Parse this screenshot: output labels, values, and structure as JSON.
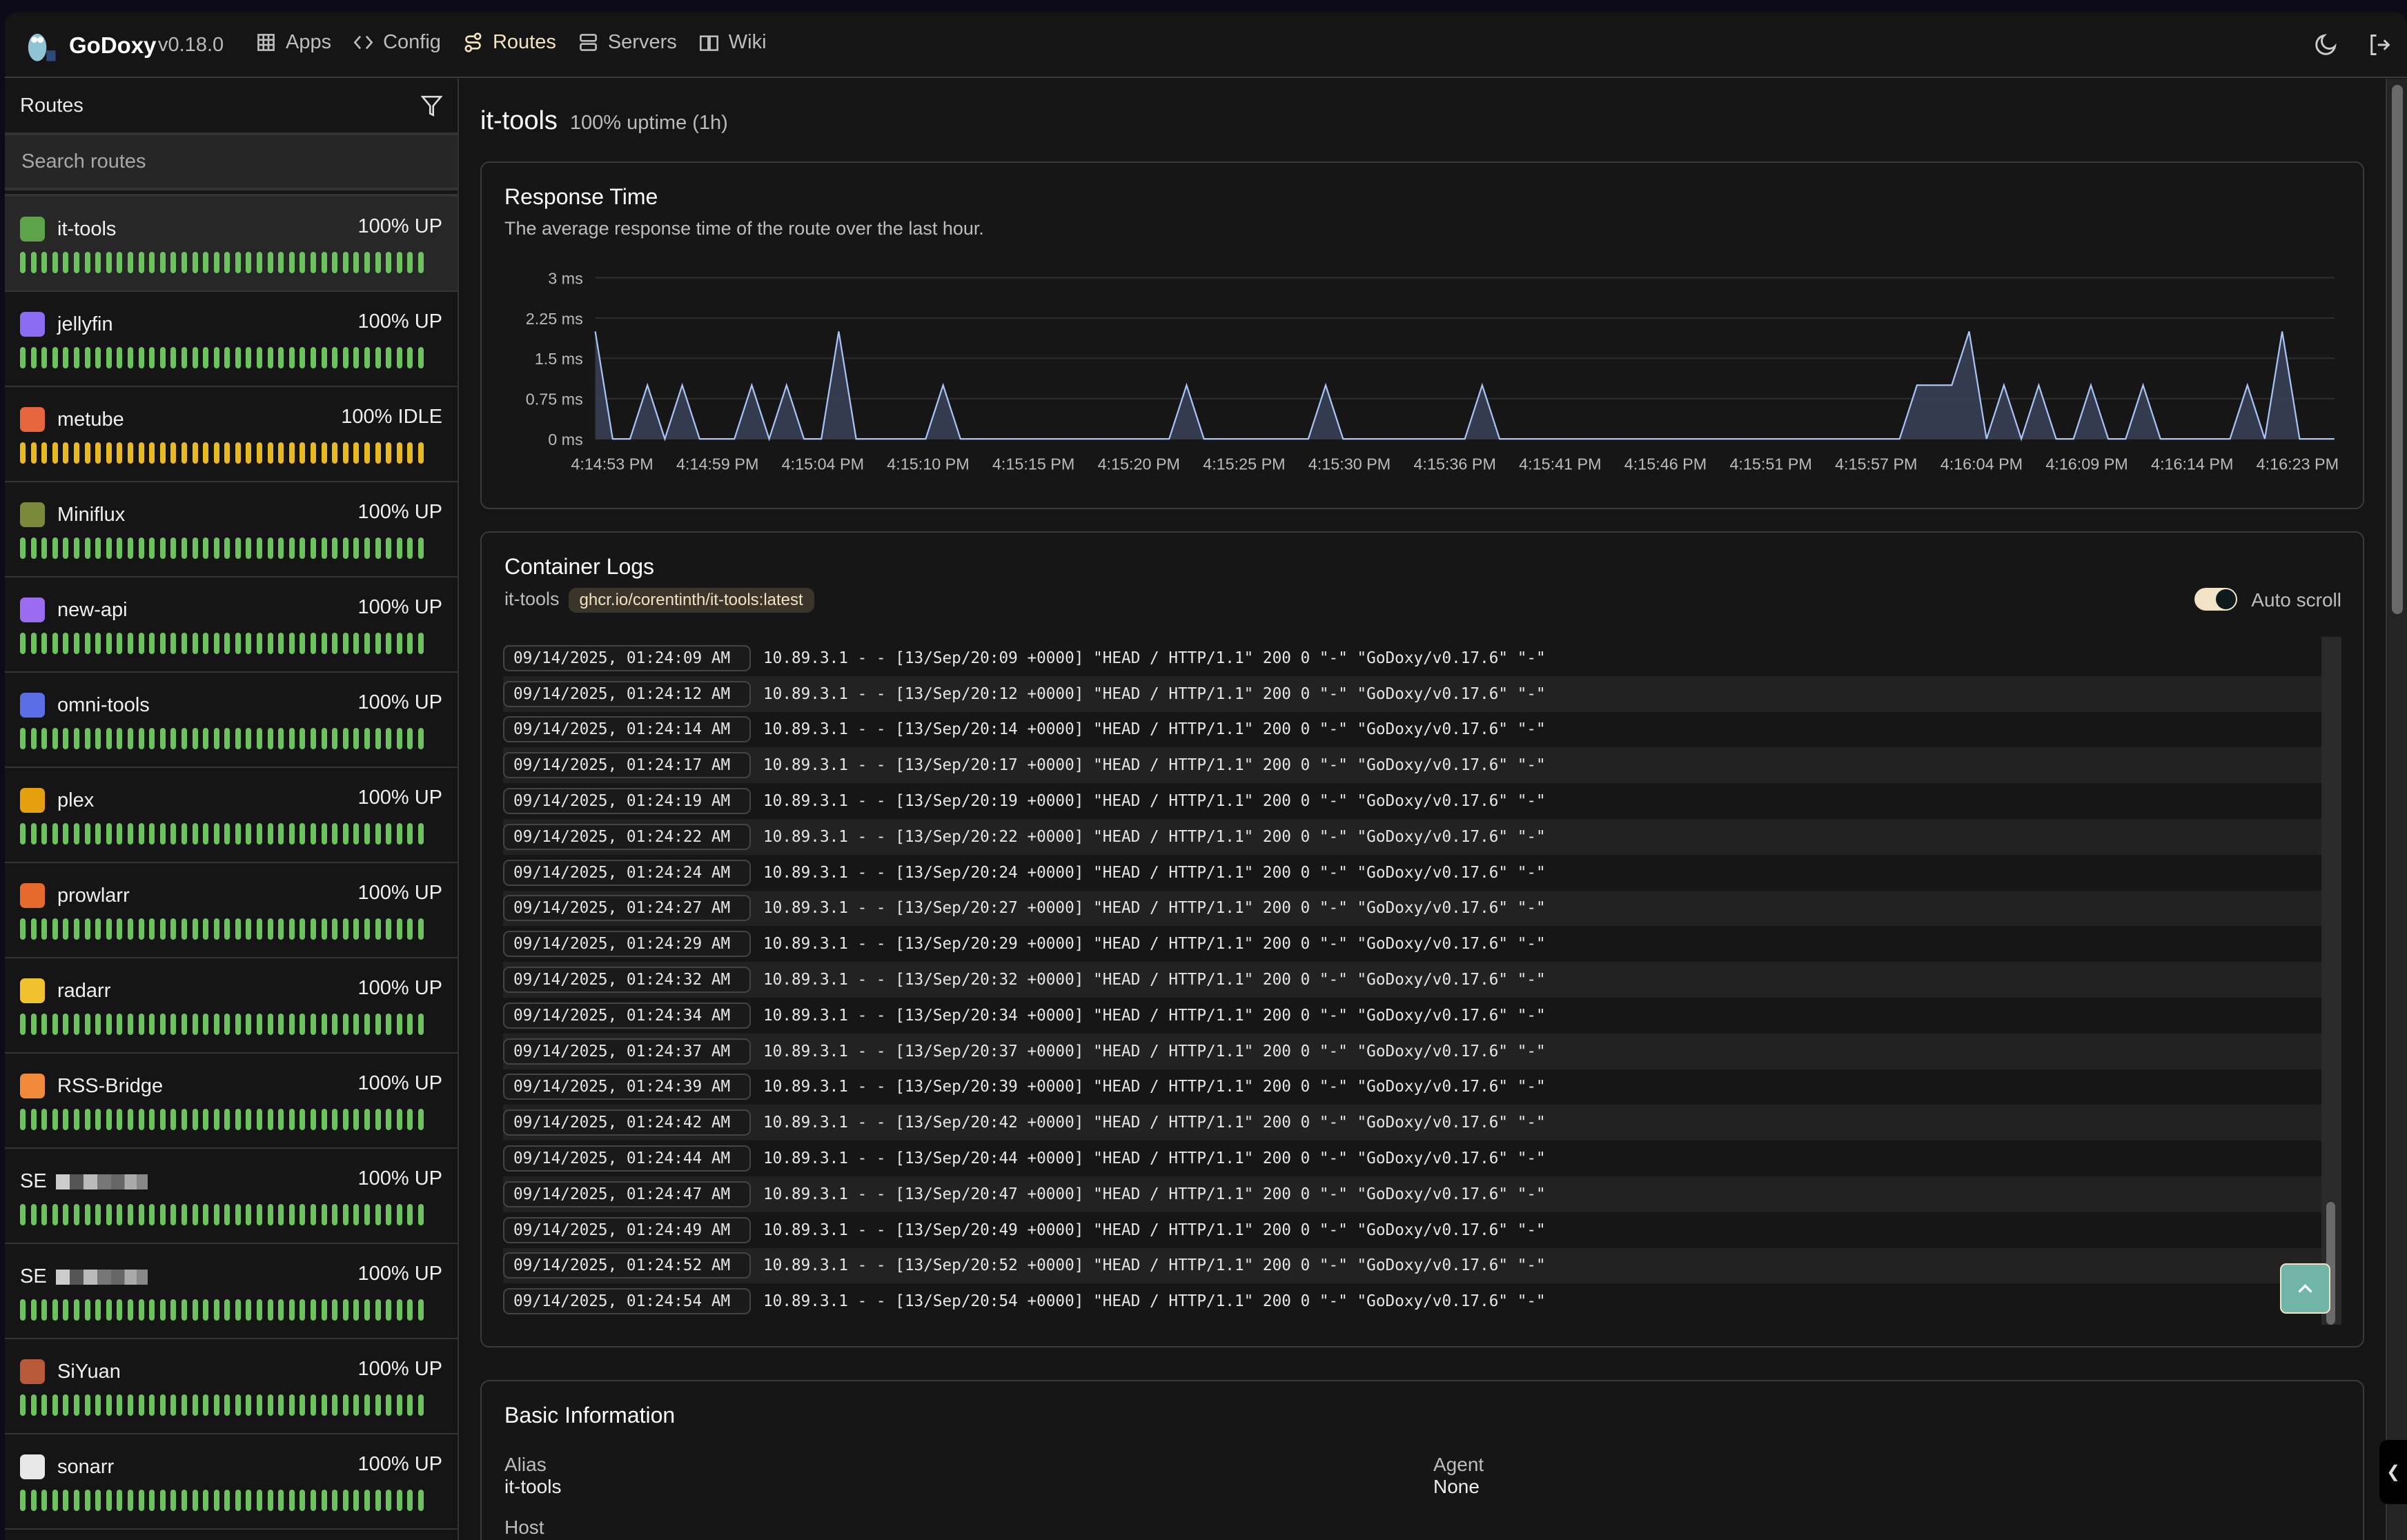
{
  "header": {
    "brand": "GoDoxy",
    "version": "v0.18.0",
    "nav": [
      {
        "label": "Apps",
        "icon": "grid-icon"
      },
      {
        "label": "Config",
        "icon": "code-icon"
      },
      {
        "label": "Routes",
        "icon": "route-icon",
        "active": true
      },
      {
        "label": "Servers",
        "icon": "server-icon"
      },
      {
        "label": "Wiki",
        "icon": "book-icon"
      }
    ],
    "actions": [
      "moon-icon",
      "logout-icon"
    ]
  },
  "sidebar": {
    "title": "Routes",
    "search_placeholder": "Search routes",
    "colors": {
      "up": "#6cc35d",
      "idle": "#e8b923"
    },
    "items": [
      {
        "name": "it-tools",
        "status": "100% UP",
        "state": "up",
        "icon": "it-tools-icon",
        "color": "#5ea34a",
        "selected": true
      },
      {
        "name": "jellyfin",
        "status": "100% UP",
        "state": "up",
        "icon": "jellyfin-icon",
        "color": "#8b6cf0"
      },
      {
        "name": "metube",
        "status": "100% IDLE",
        "state": "idle",
        "icon": "metube-icon",
        "color": "#e8643c"
      },
      {
        "name": "Miniflux",
        "status": "100% UP",
        "state": "up",
        "icon": "miniflux-icon",
        "color": "#7b8a3a"
      },
      {
        "name": "new-api",
        "status": "100% UP",
        "state": "up",
        "icon": "new-api-icon",
        "color": "#9b6cf0"
      },
      {
        "name": "omni-tools",
        "status": "100% UP",
        "state": "up",
        "icon": "omni-tools-icon",
        "color": "#5b6ee8"
      },
      {
        "name": "plex",
        "status": "100% UP",
        "state": "up",
        "icon": "plex-icon",
        "color": "#e5a00d"
      },
      {
        "name": "prowlarr",
        "status": "100% UP",
        "state": "up",
        "icon": "prowlarr-icon",
        "color": "#e66a2c"
      },
      {
        "name": "radarr",
        "status": "100% UP",
        "state": "up",
        "icon": "radarr-icon",
        "color": "#f2c12e"
      },
      {
        "name": "RSS-Bridge",
        "status": "100% UP",
        "state": "up",
        "icon": "rss-bridge-icon",
        "color": "#f08a3a"
      },
      {
        "name": "SE",
        "status": "100% UP",
        "state": "up",
        "icon": "",
        "redacted": true
      },
      {
        "name": "SE",
        "status": "100% UP",
        "state": "up",
        "icon": "",
        "redacted": true
      },
      {
        "name": "SiYuan",
        "status": "100% UP",
        "state": "up",
        "icon": "siyuan-icon",
        "color": "#b85a3a"
      },
      {
        "name": "sonarr",
        "status": "100% UP",
        "state": "up",
        "icon": "sonarr-icon",
        "color": "#e8e8e8"
      }
    ]
  },
  "main": {
    "title": "it-tools",
    "uptime": "100% uptime (1h)",
    "response": {
      "title": "Response Time",
      "subtitle": "The average response time of the route over the last hour."
    },
    "logs": {
      "title": "Container Logs",
      "container": "it-tools",
      "image": "ghcr.io/corentinth/it-tools:latest",
      "auto_scroll_label": "Auto scroll",
      "auto_scroll": true,
      "lines": [
        {
          "ts": "09/14/2025, 01:24:09 AM",
          "msg": "10.89.3.1 - - [13/Sep/20:09 +0000] \"HEAD / HTTP/1.1\" 200 0 \"-\" \"GoDoxy/v0.17.6\" \"-\""
        },
        {
          "ts": "09/14/2025, 01:24:12 AM",
          "msg": "10.89.3.1 - - [13/Sep/20:12 +0000] \"HEAD / HTTP/1.1\" 200 0 \"-\" \"GoDoxy/v0.17.6\" \"-\""
        },
        {
          "ts": "09/14/2025, 01:24:14 AM",
          "msg": "10.89.3.1 - - [13/Sep/20:14 +0000] \"HEAD / HTTP/1.1\" 200 0 \"-\" \"GoDoxy/v0.17.6\" \"-\""
        },
        {
          "ts": "09/14/2025, 01:24:17 AM",
          "msg": "10.89.3.1 - - [13/Sep/20:17 +0000] \"HEAD / HTTP/1.1\" 200 0 \"-\" \"GoDoxy/v0.17.6\" \"-\""
        },
        {
          "ts": "09/14/2025, 01:24:19 AM",
          "msg": "10.89.3.1 - - [13/Sep/20:19 +0000] \"HEAD / HTTP/1.1\" 200 0 \"-\" \"GoDoxy/v0.17.6\" \"-\""
        },
        {
          "ts": "09/14/2025, 01:24:22 AM",
          "msg": "10.89.3.1 - - [13/Sep/20:22 +0000] \"HEAD / HTTP/1.1\" 200 0 \"-\" \"GoDoxy/v0.17.6\" \"-\""
        },
        {
          "ts": "09/14/2025, 01:24:24 AM",
          "msg": "10.89.3.1 - - [13/Sep/20:24 +0000] \"HEAD / HTTP/1.1\" 200 0 \"-\" \"GoDoxy/v0.17.6\" \"-\""
        },
        {
          "ts": "09/14/2025, 01:24:27 AM",
          "msg": "10.89.3.1 - - [13/Sep/20:27 +0000] \"HEAD / HTTP/1.1\" 200 0 \"-\" \"GoDoxy/v0.17.6\" \"-\""
        },
        {
          "ts": "09/14/2025, 01:24:29 AM",
          "msg": "10.89.3.1 - - [13/Sep/20:29 +0000] \"HEAD / HTTP/1.1\" 200 0 \"-\" \"GoDoxy/v0.17.6\" \"-\""
        },
        {
          "ts": "09/14/2025, 01:24:32 AM",
          "msg": "10.89.3.1 - - [13/Sep/20:32 +0000] \"HEAD / HTTP/1.1\" 200 0 \"-\" \"GoDoxy/v0.17.6\" \"-\""
        },
        {
          "ts": "09/14/2025, 01:24:34 AM",
          "msg": "10.89.3.1 - - [13/Sep/20:34 +0000] \"HEAD / HTTP/1.1\" 200 0 \"-\" \"GoDoxy/v0.17.6\" \"-\""
        },
        {
          "ts": "09/14/2025, 01:24:37 AM",
          "msg": "10.89.3.1 - - [13/Sep/20:37 +0000] \"HEAD / HTTP/1.1\" 200 0 \"-\" \"GoDoxy/v0.17.6\" \"-\""
        },
        {
          "ts": "09/14/2025, 01:24:39 AM",
          "msg": "10.89.3.1 - - [13/Sep/20:39 +0000] \"HEAD / HTTP/1.1\" 200 0 \"-\" \"GoDoxy/v0.17.6\" \"-\""
        },
        {
          "ts": "09/14/2025, 01:24:42 AM",
          "msg": "10.89.3.1 - - [13/Sep/20:42 +0000] \"HEAD / HTTP/1.1\" 200 0 \"-\" \"GoDoxy/v0.17.6\" \"-\""
        },
        {
          "ts": "09/14/2025, 01:24:44 AM",
          "msg": "10.89.3.1 - - [13/Sep/20:44 +0000] \"HEAD / HTTP/1.1\" 200 0 \"-\" \"GoDoxy/v0.17.6\" \"-\""
        },
        {
          "ts": "09/14/2025, 01:24:47 AM",
          "msg": "10.89.3.1 - - [13/Sep/20:47 +0000] \"HEAD / HTTP/1.1\" 200 0 \"-\" \"GoDoxy/v0.17.6\" \"-\""
        },
        {
          "ts": "09/14/2025, 01:24:49 AM",
          "msg": "10.89.3.1 - - [13/Sep/20:49 +0000] \"HEAD / HTTP/1.1\" 200 0 \"-\" \"GoDoxy/v0.17.6\" \"-\""
        },
        {
          "ts": "09/14/2025, 01:24:52 AM",
          "msg": "10.89.3.1 - - [13/Sep/20:52 +0000] \"HEAD / HTTP/1.1\" 200 0 \"-\" \"GoDoxy/v0.17.6\" \"-\""
        },
        {
          "ts": "09/14/2025, 01:24:54 AM",
          "msg": "10.89.3.1 - - [13/Sep/20:54 +0000] \"HEAD / HTTP/1.1\" 200 0 \"-\" \"GoDoxy/v0.17.6\" \"-\""
        }
      ]
    },
    "basic": {
      "title": "Basic Information",
      "fields": [
        {
          "label": "Alias",
          "value": "it-tools"
        },
        {
          "label": "Agent",
          "value": "None"
        },
        {
          "label": "Host",
          "value": ""
        }
      ]
    }
  },
  "chart_data": {
    "type": "area",
    "title": "Response Time",
    "ylim": [
      0,
      3
    ],
    "grid": true,
    "color": "#a9c4f5",
    "y_ticks": [
      "0 ms",
      "0.75 ms",
      "1.5 ms",
      "2.25 ms",
      "3 ms"
    ],
    "x_ticks": [
      "4:14:53 PM",
      "4:14:59 PM",
      "4:15:04 PM",
      "4:15:10 PM",
      "4:15:15 PM",
      "4:15:20 PM",
      "4:15:25 PM",
      "4:15:30 PM",
      "4:15:36 PM",
      "4:15:41 PM",
      "4:15:46 PM",
      "4:15:51 PM",
      "4:15:57 PM",
      "4:16:04 PM",
      "4:16:09 PM",
      "4:16:14 PM",
      "4:16:23 PM"
    ],
    "values_ms": [
      2,
      0,
      0,
      1,
      0,
      1,
      0,
      0,
      0,
      1,
      0,
      1,
      0,
      0,
      2,
      0,
      0,
      0,
      0,
      0,
      1,
      0,
      0,
      0,
      0,
      0,
      0,
      0,
      0,
      0,
      0,
      0,
      0,
      0,
      1,
      0,
      0,
      0,
      0,
      0,
      0,
      0,
      1,
      0,
      0,
      0,
      0,
      0,
      0,
      0,
      0,
      1,
      0,
      0,
      0,
      0,
      0,
      0,
      0,
      0,
      0,
      0,
      0,
      0,
      0,
      0,
      0,
      0,
      0,
      0,
      0,
      0,
      0,
      0,
      0,
      0,
      1,
      1,
      1,
      2,
      0,
      1,
      0,
      1,
      0,
      0,
      1,
      0,
      0,
      1,
      0,
      0,
      0,
      0,
      0,
      1,
      0,
      2,
      0,
      0,
      0
    ]
  }
}
